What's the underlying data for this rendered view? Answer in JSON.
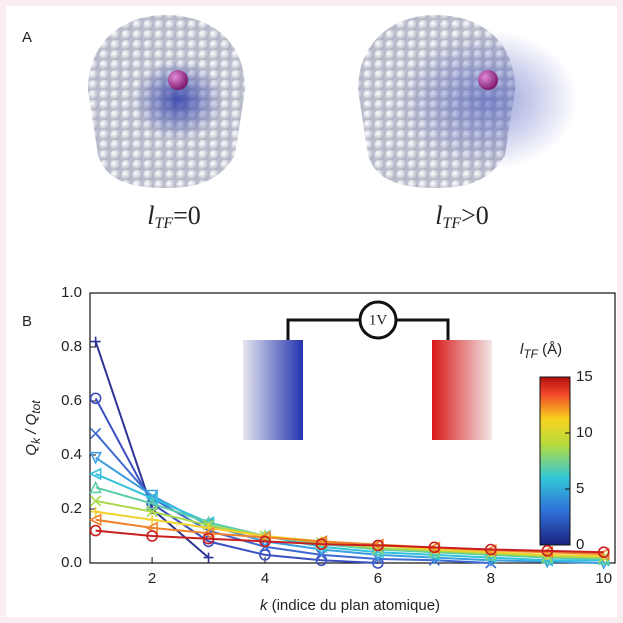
{
  "panel_a": {
    "letter": "A",
    "captions": [
      {
        "l": "l",
        "sub": "TF",
        "rest": "=0"
      },
      {
        "l": "l",
        "sub": "TF",
        "rest": ">0"
      }
    ]
  },
  "chart_data": {
    "type": "line",
    "letter": "B",
    "ylabel": {
      "main": "Q",
      "sub": "k",
      "mid": " / Q",
      "sub2": "tot"
    },
    "xlabel": {
      "var": "k",
      "rest": " (indice du plan atomique)"
    },
    "x": [
      1,
      2,
      3,
      4,
      5,
      6,
      7,
      8,
      9,
      10
    ],
    "xlim": [
      0.9,
      10.2
    ],
    "xticks": [
      2,
      4,
      6,
      8,
      10
    ],
    "ylim": [
      0,
      1
    ],
    "yticks": [
      {
        "value": 0,
        "label": "0.0"
      },
      0.2,
      0.4,
      0.6,
      0.8,
      {
        "value": 1,
        "label": "1.0"
      }
    ],
    "series": [
      {
        "color": "#2c3594",
        "marker": "plus",
        "values": [
          0.82,
          0.2,
          0.02,
          null,
          null,
          null,
          null,
          null,
          null,
          null
        ]
      },
      {
        "color": "#3a4fc0",
        "marker": "circle",
        "values": [
          0.61,
          0.22,
          0.08,
          0.03,
          0.01,
          0.0,
          null,
          null,
          null,
          null
        ]
      },
      {
        "color": "#3f68d2",
        "marker": "x",
        "values": [
          0.48,
          0.24,
          0.12,
          0.06,
          0.03,
          0.015,
          0.01,
          0.0,
          null,
          null
        ]
      },
      {
        "color": "#3c9de0",
        "marker": "triangle-down",
        "values": [
          0.39,
          0.25,
          0.14,
          0.08,
          0.05,
          0.03,
          0.02,
          0.01,
          0.005,
          0.0
        ]
      },
      {
        "color": "#33c1dc",
        "marker": "triangle-left",
        "values": [
          0.33,
          0.24,
          0.15,
          0.1,
          0.06,
          0.04,
          0.03,
          0.02,
          0.01,
          0.01
        ]
      },
      {
        "color": "#5cccaa",
        "marker": "triangle-up",
        "values": [
          0.28,
          0.22,
          0.15,
          0.1,
          0.07,
          0.05,
          0.04,
          0.03,
          0.02,
          0.015
        ]
      },
      {
        "color": "#a7d94a",
        "marker": "x",
        "values": [
          0.23,
          0.19,
          0.14,
          0.1,
          0.075,
          0.055,
          0.045,
          0.035,
          0.025,
          0.02
        ]
      },
      {
        "color": "#f2d12c",
        "marker": "plus",
        "values": [
          0.19,
          0.16,
          0.13,
          0.1,
          0.08,
          0.065,
          0.05,
          0.04,
          0.03,
          0.025
        ]
      },
      {
        "color": "#f0822b",
        "marker": "triangle-left",
        "values": [
          0.16,
          0.13,
          0.11,
          0.095,
          0.08,
          0.068,
          0.057,
          0.047,
          0.04,
          0.033
        ]
      },
      {
        "color": "#c9201f",
        "marker": "circle",
        "values": [
          0.12,
          0.1,
          0.09,
          0.08,
          0.07,
          0.065,
          0.058,
          0.05,
          0.045,
          0.04
        ]
      }
    ],
    "inset": {
      "source": "1V"
    },
    "colorbar": {
      "label": {
        "l": "l",
        "sub": "TF",
        "rest": " (Å)"
      },
      "lim": [
        0,
        15
      ],
      "ticks": [
        0,
        5,
        10,
        15
      ]
    }
  }
}
